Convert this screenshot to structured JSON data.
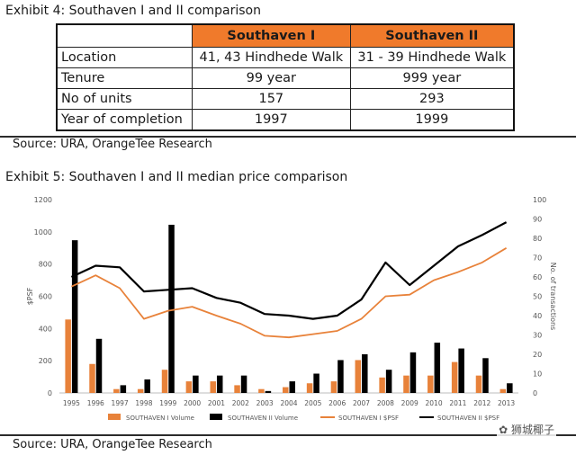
{
  "exhibit4": {
    "title": "Exhibit 4: Southaven I and II comparison",
    "columns": [
      "Southaven I",
      "Southaven II"
    ],
    "rows": [
      {
        "label": "Location",
        "a": "41, 43 Hindhede Walk",
        "b": "31 - 39 Hindhede Walk"
      },
      {
        "label": "Tenure",
        "a": "99 year",
        "b": "999 year"
      },
      {
        "label": "No of units",
        "a": "157",
        "b": "293"
      },
      {
        "label": "Year of completion",
        "a": "1997",
        "b": "1999"
      }
    ],
    "source": "Source: URA, OrangeTee Research"
  },
  "exhibit5": {
    "title": "Exhibit 5: Southaven I and II median price comparison",
    "source": "Source: URA, OrangeTee Research"
  },
  "watermark": "狮城椰子",
  "chart_data": {
    "type": "bar+line",
    "title": "Exhibit 5: Southaven I and II median price comparison",
    "categories": [
      "1995",
      "1996",
      "1997",
      "1998",
      "1999",
      "2000",
      "2001",
      "2002",
      "2003",
      "2004",
      "2005",
      "2006",
      "2007",
      "2008",
      "2009",
      "2010",
      "2011",
      "2012",
      "2013"
    ],
    "ylabel": "$PSF",
    "y2label": "No. of transactions",
    "ylim": [
      0,
      1200
    ],
    "y2lim": [
      0,
      100
    ],
    "yticks": [
      "0",
      "200",
      "400",
      "600",
      "800",
      "1000",
      "1200"
    ],
    "y2ticks": [
      "0",
      "10",
      "20",
      "30",
      "40",
      "50",
      "60",
      "70",
      "80",
      "90",
      "100"
    ],
    "series": [
      {
        "name": "SOUTHAVEN I Volume",
        "kind": "bar",
        "axis": "right",
        "color": "#e8823a",
        "values": [
          38,
          15,
          2,
          2,
          12,
          6,
          6,
          4,
          2,
          3,
          5,
          6,
          17,
          8,
          9,
          9,
          16,
          9,
          2
        ]
      },
      {
        "name": "SOUTHAVEN II Volume",
        "kind": "bar",
        "axis": "right",
        "color": "#000000",
        "values": [
          79,
          28,
          4,
          7,
          87,
          9,
          9,
          9,
          1,
          6,
          10,
          17,
          20,
          12,
          21,
          26,
          23,
          18,
          5
        ]
      },
      {
        "name": "SOUTHAVEN I $PSF",
        "kind": "line",
        "axis": "left",
        "color": "#e8823a",
        "values": [
          660,
          730,
          650,
          460,
          510,
          535,
          480,
          430,
          355,
          345,
          365,
          385,
          460,
          600,
          610,
          700,
          750,
          810,
          900
        ]
      },
      {
        "name": "SOUTHAVEN II $PSF",
        "kind": "line",
        "axis": "left",
        "color": "#000000",
        "values": [
          720,
          790,
          780,
          630,
          640,
          650,
          590,
          560,
          490,
          480,
          460,
          480,
          580,
          810,
          670,
          790,
          910,
          980,
          1060
        ]
      }
    ]
  }
}
